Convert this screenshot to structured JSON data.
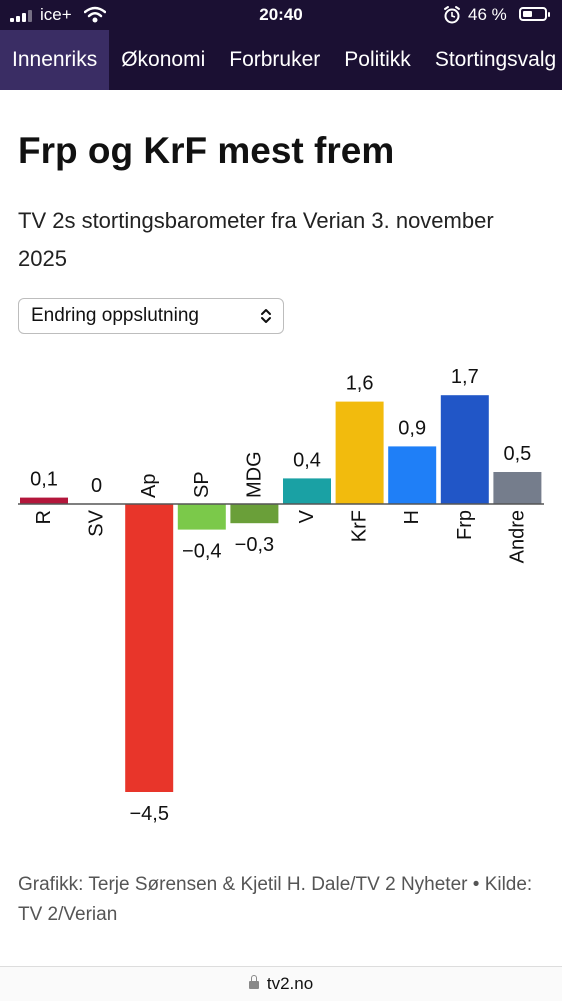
{
  "status": {
    "carrier": "ice+",
    "time": "20:40",
    "battery": "46 %",
    "battery_level": 0.46
  },
  "nav": {
    "tabs": [
      {
        "label": "Innenriks",
        "active": true
      },
      {
        "label": "Økonomi",
        "active": false
      },
      {
        "label": "Forbruker",
        "active": false
      },
      {
        "label": "Politikk",
        "active": false
      },
      {
        "label": "Stortingsvalg",
        "active": false
      }
    ]
  },
  "article": {
    "title": "Frp og KrF mest frem",
    "subtitle": "TV 2s stortingsbarometer fra Verian 3. november 2025",
    "dropdown_value": "Endring oppslutning",
    "credit": "Grafikk: Terje Sørensen & Kjetil H. Dale/TV 2 Nyheter • Kilde: TV 2/Verian"
  },
  "browser": {
    "url": "tv2.no"
  },
  "chart_data": {
    "type": "bar",
    "title": "Frp og KrF mest frem",
    "subtitle": "TV 2s stortingsbarometer fra Verian 3. november 2025",
    "categories": [
      "R",
      "SV",
      "Ap",
      "SP",
      "MDG",
      "V",
      "KrF",
      "H",
      "Frp",
      "Andre"
    ],
    "values": [
      0.1,
      0,
      -4.5,
      -0.4,
      -0.3,
      0.4,
      1.6,
      0.9,
      1.7,
      0.5
    ],
    "value_labels": [
      "0,1",
      "0",
      "−4,5",
      "−0,4",
      "−0,3",
      "0,4",
      "1,6",
      "0,9",
      "1,7",
      "0,5"
    ],
    "colors": [
      "#b3163b",
      "#c51f4a",
      "#e8352a",
      "#7bc94a",
      "#6a9f39",
      "#1aa1a4",
      "#f2bb0d",
      "#1f7ff7",
      "#2156c7",
      "#757d8c"
    ],
    "xlabel": "",
    "ylabel": "",
    "ylim": [
      -4.5,
      1.7
    ],
    "grid": false,
    "legend": "none"
  }
}
